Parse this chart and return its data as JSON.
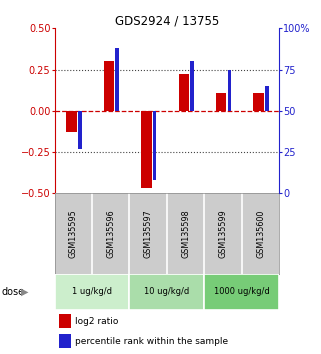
{
  "title": "GDS2924 / 13755",
  "samples": [
    "GSM135595",
    "GSM135596",
    "GSM135597",
    "GSM135598",
    "GSM135599",
    "GSM135600"
  ],
  "log2_ratio": [
    -0.13,
    0.3,
    -0.47,
    0.22,
    0.11,
    0.11
  ],
  "percentile": [
    27,
    88,
    8,
    80,
    75,
    65
  ],
  "dose_groups": [
    {
      "label": "1 ug/kg/d",
      "start": 0,
      "end": 2,
      "color": "#cceecc"
    },
    {
      "label": "10 ug/kg/d",
      "start": 2,
      "end": 4,
      "color": "#aaddaa"
    },
    {
      "label": "1000 ug/kg/d",
      "start": 4,
      "end": 6,
      "color": "#77cc77"
    }
  ],
  "ylim_left": [
    -0.5,
    0.5
  ],
  "ylim_right": [
    0,
    100
  ],
  "red_color": "#cc0000",
  "blue_color": "#2222cc",
  "bg_sample_color": "#cccccc",
  "left_axis_color": "#cc0000",
  "right_axis_color": "#2222cc",
  "legend_red": "log2 ratio",
  "legend_blue": "percentile rank within the sample",
  "dose_label": "dose",
  "hline_vals": [
    0.25,
    0.0,
    -0.25
  ],
  "yticks_left": [
    -0.5,
    -0.25,
    0,
    0.25,
    0.5
  ],
  "yticks_right": [
    0,
    25,
    50,
    75,
    100
  ],
  "ytick_right_labels": [
    "0",
    "25",
    "50",
    "75",
    "100%"
  ]
}
